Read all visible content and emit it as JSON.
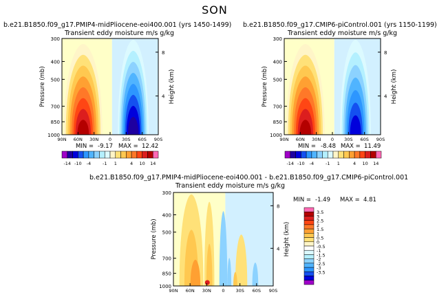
{
  "page_title": "SON",
  "colors": {
    "neg": [
      "#a000c8",
      "#1e00a0",
      "#0000dc",
      "#1450f0",
      "#2d96ff",
      "#50b4ff",
      "#8cd2ff",
      "#b4f0ff",
      "#dcfaff"
    ],
    "pos": [
      "#fff5c8",
      "#ffe178",
      "#ffc850",
      "#ffa032",
      "#ff7828",
      "#ff4614",
      "#dc1e1e",
      "#b40000",
      "#ff69b4"
    ],
    "shade_pos": "#ffffc8",
    "shade_neg": "#d2f0ff"
  },
  "chart_data": [
    {
      "type": "heatmap",
      "title": "b.e21.B1850.f09_g17.PMIP4-midPliocene-eoi400.001 (yrs 1450-1499)",
      "subtitle": "Transient eddy moisture m/s g/kg",
      "ylabel": "Pressure (mb)",
      "ylabel_right": "Height (km)",
      "x_ticks": [
        "90N",
        "60N",
        "30N",
        "0",
        "30S",
        "60S",
        "90S"
      ],
      "y_ticks": [
        300,
        400,
        500,
        700,
        850,
        1000
      ],
      "height_ticks": [
        "8",
        "4"
      ],
      "min_label": "MIN =",
      "min_value": "-9.17",
      "max_label": "MAX =",
      "max_value": "12.42",
      "pos_peak": 12.42,
      "neg_peak": 9.17
    },
    {
      "type": "heatmap",
      "title": "b.e21.B1850.f09_g17.CMIP6-piControl.001 (yrs 1150-1199)",
      "subtitle": "Transient eddy moisture m/s g/kg",
      "ylabel": "Pressure (mb)",
      "ylabel_right": "Height (km)",
      "x_ticks": [
        "90N",
        "60N",
        "30N",
        "0",
        "30S",
        "60S",
        "90S"
      ],
      "y_ticks": [
        300,
        400,
        500,
        700,
        850,
        1000
      ],
      "height_ticks": [
        "8",
        "4"
      ],
      "min_label": "MIN =",
      "min_value": "-8.48",
      "max_label": "MAX =",
      "max_value": "11.49",
      "pos_peak": 11.49,
      "neg_peak": 8.48
    },
    {
      "type": "heatmap",
      "title": "b.e21.B1850.f09_g17.PMIP4-midPliocene-eoi400.001 - b.e21.B1850.f09_g17.CMIP6-piControl.001",
      "subtitle": "Transient eddy moisture m/s g/kg",
      "ylabel": "Pressure (mb)",
      "ylabel_right": "Height (km)",
      "x_ticks": [
        "90N",
        "60N",
        "30N",
        "0",
        "30S",
        "60S",
        "90S"
      ],
      "y_ticks": [
        300,
        400,
        500,
        700,
        850,
        1000
      ],
      "height_ticks": [
        "8",
        "4"
      ],
      "min_label": "MIN =",
      "min_value": "-1.49",
      "max_label": "MAX =",
      "max_value": "4.81",
      "pos_peak": 4.81,
      "neg_peak": 1.49
    }
  ],
  "colorbar_main": {
    "labels": [
      "-14",
      "-10",
      "-4",
      "-1",
      "1",
      "4",
      "10",
      "14"
    ]
  },
  "colorbar_diff": {
    "labels": [
      "3.5",
      "3",
      "2.5",
      "2",
      "1.5",
      "1",
      "0.5",
      "0",
      "-0.5",
      "-1",
      "-1.5",
      "-2",
      "-2.5",
      "-3",
      "-3.5"
    ]
  }
}
